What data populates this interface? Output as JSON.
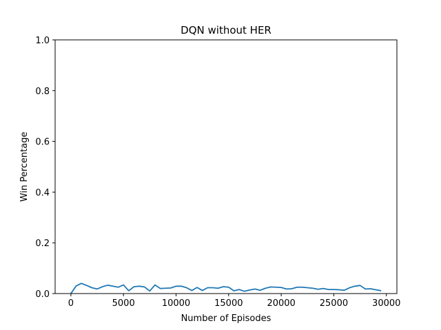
{
  "chart_data": {
    "type": "line",
    "title": "DQN without HER",
    "xlabel": "Number of Episodes",
    "ylabel": "Win Percentage",
    "xlim": [
      -1500,
      31000
    ],
    "ylim": [
      0,
      1.0
    ],
    "x_ticks": [
      0,
      5000,
      10000,
      15000,
      20000,
      25000,
      30000
    ],
    "x_tick_labels": [
      "0",
      "5000",
      "10000",
      "15000",
      "20000",
      "25000",
      "30000"
    ],
    "y_ticks": [
      0.0,
      0.2,
      0.4,
      0.6,
      0.8,
      1.0
    ],
    "y_tick_labels": [
      "0.0",
      "0.2",
      "0.4",
      "0.6",
      "0.8",
      "1.0"
    ],
    "grid": false,
    "series": [
      {
        "color": "#1f77b4",
        "x": [
          0,
          500,
          1000,
          1500,
          2000,
          2500,
          3000,
          3500,
          4000,
          4500,
          5000,
          5500,
          6000,
          6500,
          7000,
          7500,
          8000,
          8500,
          9000,
          9500,
          10000,
          10500,
          11000,
          11500,
          12000,
          12500,
          13000,
          13500,
          14000,
          14500,
          15000,
          15500,
          16000,
          16500,
          17000,
          17500,
          18000,
          18500,
          19000,
          19500,
          20000,
          20500,
          21000,
          21500,
          22000,
          22500,
          23000,
          23500,
          24000,
          24500,
          25000,
          25500,
          26000,
          26500,
          27000,
          27500,
          28000,
          28500,
          29000,
          29500
        ],
        "y": [
          0.0,
          0.03,
          0.04,
          0.032,
          0.023,
          0.018,
          0.027,
          0.033,
          0.029,
          0.025,
          0.034,
          0.011,
          0.027,
          0.029,
          0.026,
          0.01,
          0.034,
          0.02,
          0.021,
          0.022,
          0.029,
          0.029,
          0.023,
          0.012,
          0.024,
          0.012,
          0.023,
          0.023,
          0.021,
          0.027,
          0.025,
          0.011,
          0.016,
          0.009,
          0.014,
          0.018,
          0.013,
          0.021,
          0.026,
          0.025,
          0.024,
          0.018,
          0.019,
          0.025,
          0.025,
          0.023,
          0.021,
          0.017,
          0.02,
          0.016,
          0.016,
          0.015,
          0.013,
          0.023,
          0.029,
          0.032,
          0.018,
          0.019,
          0.015,
          0.011
        ]
      }
    ]
  }
}
